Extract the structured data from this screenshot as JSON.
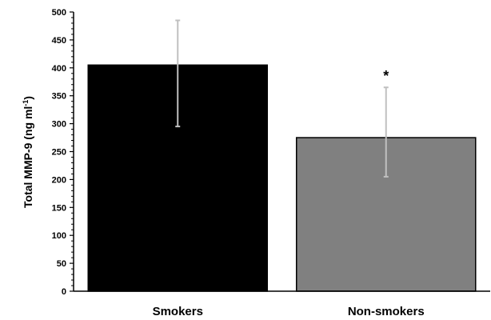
{
  "chart_data": {
    "type": "bar",
    "title": "",
    "xlabel": "",
    "ylabel": "Total MMP-9 (ng ml",
    "ylabel_superscript": "-1",
    "ylabel_suffix": ")",
    "categories": [
      "Smokers",
      "Non-smokers"
    ],
    "values": [
      405,
      275
    ],
    "error_low": [
      295,
      205
    ],
    "error_high": [
      485,
      365
    ],
    "annotations": [
      "",
      "*"
    ],
    "bar_colors": [
      "#000000",
      "#808080"
    ],
    "error_bar_color": "#c0c0c0",
    "ylim": [
      0,
      500
    ],
    "yticks": [
      0,
      50,
      100,
      150,
      200,
      250,
      300,
      350,
      400,
      450,
      500
    ],
    "ytick_labels": [
      "0",
      "50",
      "100",
      "150",
      "200",
      "250",
      "300",
      "350",
      "400",
      "450",
      "500"
    ],
    "minor_ticks_per_major": 5,
    "grid": false,
    "legend": false
  }
}
